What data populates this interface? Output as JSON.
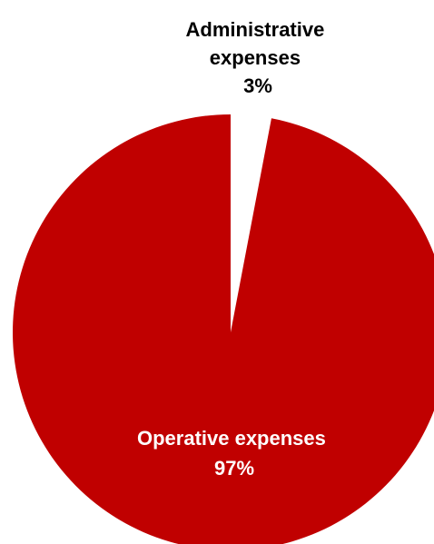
{
  "chart_data": {
    "type": "pie",
    "title": "",
    "slices": [
      {
        "name": "Administrative expenses",
        "value": 3,
        "value_label": "3%",
        "color": "#ffffff",
        "label_color": "#000000"
      },
      {
        "name": "Operative expenses",
        "value": 97,
        "value_label": "97%",
        "color": "#c00000",
        "label_color": "#ffffff"
      }
    ],
    "legend": "none"
  }
}
